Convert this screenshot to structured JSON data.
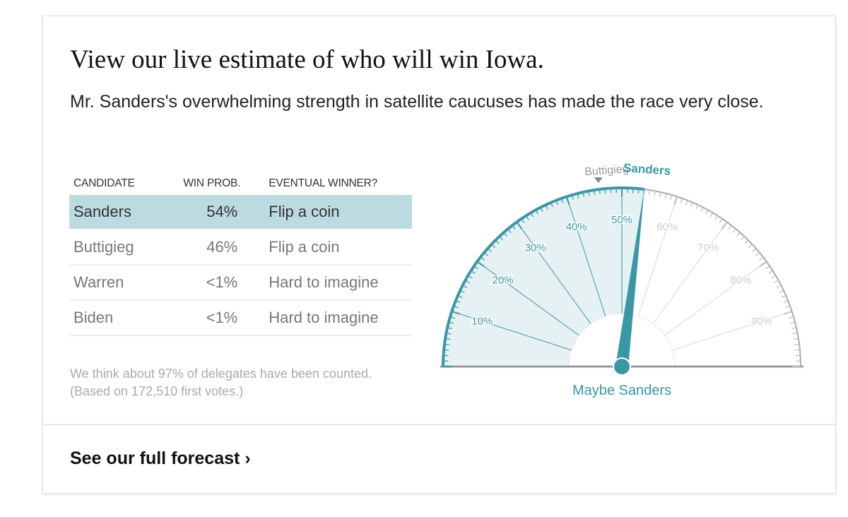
{
  "header": {
    "title": "View our live estimate of who will win Iowa.",
    "subtitle": "Mr. Sanders's overwhelming strength in satellite caucuses has made the race very close."
  },
  "table": {
    "columns": [
      "CANDIDATE",
      "WIN PROB.",
      "EVENTUAL WINNER?"
    ],
    "rows": [
      {
        "candidate": "Sanders",
        "prob": "54%",
        "verdict": "Flip a coin"
      },
      {
        "candidate": "Buttigieg",
        "prob": "46%",
        "verdict": "Flip a coin"
      },
      {
        "candidate": "Warren",
        "prob": "<1%",
        "verdict": "Hard to imagine"
      },
      {
        "candidate": "Biden",
        "prob": "<1%",
        "verdict": "Hard to imagine"
      }
    ]
  },
  "note": {
    "line1": "We think about 97% of delegates have been counted.",
    "line2": "(Based on 172,510 first votes.)"
  },
  "gauge": {
    "leader": "Sanders",
    "leader_value": 54,
    "runner_up": "Buttigieg",
    "runner_up_value": 46,
    "tick_labels": [
      "10%",
      "20%",
      "30%",
      "40%",
      "50%",
      "60%",
      "70%",
      "80%",
      "90%"
    ],
    "verdict": "Maybe Sanders",
    "colors": {
      "teal": "#3a97a6",
      "fill": "#e6f1f4",
      "gray": "#aaaaaa"
    }
  },
  "footer": {
    "link": "See our full forecast",
    "chevron": "›"
  }
}
